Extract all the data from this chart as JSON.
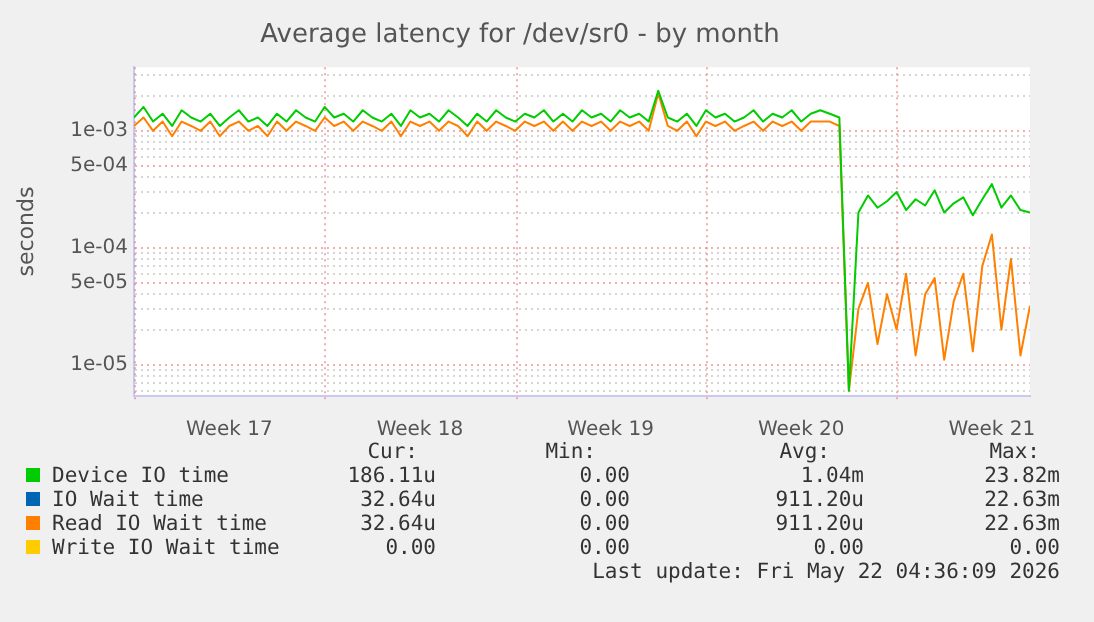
{
  "chart_data": {
    "type": "line",
    "title": "Average latency for /dev/sr0 - by month",
    "ylabel": "seconds",
    "log": "y",
    "grid": true,
    "legend": "bottom",
    "marker": "none",
    "line_style": "solid",
    "categories": [
      null,
      null,
      null,
      null,
      null,
      null,
      null,
      null,
      null,
      null,
      "Week 17",
      null,
      null,
      null,
      null,
      null,
      null,
      null,
      null,
      null,
      null,
      null,
      null,
      null,
      null,
      null,
      null,
      null,
      null,
      null,
      "Week 18",
      null,
      null,
      null,
      null,
      null,
      null,
      null,
      null,
      null,
      null,
      null,
      null,
      null,
      null,
      null,
      null,
      null,
      null,
      null,
      "Week 19",
      null,
      null,
      null,
      null,
      null,
      null,
      null,
      null,
      null,
      null,
      null,
      null,
      null,
      null,
      null,
      null,
      null,
      null,
      null,
      "Week 20",
      null,
      null,
      null,
      null,
      null,
      null,
      null,
      null,
      null,
      null,
      null,
      null,
      null,
      null,
      null,
      null,
      null,
      null,
      null,
      "Week 21",
      null,
      null,
      null,
      null
    ],
    "ylim": [
      5.4e-06,
      0.0035
    ],
    "yticks": [
      {
        "value": 6e-06,
        "label": null
      },
      {
        "value": 7e-06,
        "label": null
      },
      {
        "value": 8e-06,
        "label": null
      },
      {
        "value": 9e-06,
        "label": null
      },
      {
        "value": 1e-05,
        "label": "1e-05"
      },
      {
        "value": 2e-05,
        "label": null
      },
      {
        "value": 3e-05,
        "label": null
      },
      {
        "value": 4e-05,
        "label": null
      },
      {
        "value": 5e-05,
        "label": "5e-05"
      },
      {
        "value": 6e-05,
        "label": null
      },
      {
        "value": 7e-05,
        "label": null
      },
      {
        "value": 8e-05,
        "label": null
      },
      {
        "value": 9e-05,
        "label": null
      },
      {
        "value": 0.0001,
        "label": "1e-04"
      },
      {
        "value": 0.0002,
        "label": null
      },
      {
        "value": 0.0003,
        "label": null
      },
      {
        "value": 0.0004,
        "label": null
      },
      {
        "value": 0.0005,
        "label": "5e-04"
      },
      {
        "value": 0.0006,
        "label": null
      },
      {
        "value": 0.0007,
        "label": null
      },
      {
        "value": 0.0008,
        "label": null
      },
      {
        "value": 0.0009,
        "label": null
      },
      {
        "value": 0.001,
        "label": "1e-03"
      },
      {
        "value": 0.002,
        "label": null
      },
      {
        "value": 0.003,
        "label": null
      }
    ],
    "series": [
      {
        "name": "Device IO time",
        "color": "#00cc00",
        "values": [
          0.0013,
          0.0016,
          0.0012,
          0.0014,
          0.0011,
          0.0015,
          0.0013,
          0.0012,
          0.0014,
          0.0011,
          0.0013,
          0.0015,
          0.0012,
          0.0013,
          0.0011,
          0.0014,
          0.0012,
          0.0015,
          0.0013,
          0.0012,
          0.0016,
          0.0013,
          0.0014,
          0.0012,
          0.0015,
          0.0013,
          0.0012,
          0.0014,
          0.0011,
          0.0015,
          0.0013,
          0.0014,
          0.0012,
          0.0015,
          0.0013,
          0.0011,
          0.0014,
          0.0012,
          0.0015,
          0.0013,
          0.0012,
          0.0014,
          0.0013,
          0.0015,
          0.0012,
          0.0014,
          0.0012,
          0.0015,
          0.0013,
          0.0014,
          0.0012,
          0.0015,
          0.0013,
          0.0014,
          0.0012,
          0.0022,
          0.0013,
          0.0012,
          0.0014,
          0.0011,
          0.0015,
          0.0013,
          0.0014,
          0.0012,
          0.0013,
          0.0015,
          0.0012,
          0.0014,
          0.0013,
          0.0015,
          0.0012,
          0.0014,
          0.0015,
          0.0014,
          0.0013,
          6e-06,
          0.0002,
          0.00028,
          0.00022,
          0.00025,
          0.0003,
          0.00021,
          0.00026,
          0.00023,
          0.00031,
          0.0002,
          0.00024,
          0.00027,
          0.00019,
          0.00026,
          0.00035,
          0.00022,
          0.00028,
          0.00021,
          0.0002
        ]
      },
      {
        "name": "IO Wait time",
        "color": "#0066b3",
        "values": [
          null,
          null,
          null,
          null,
          null,
          null,
          null,
          null,
          null,
          null,
          null,
          null,
          null,
          null,
          null,
          null,
          null,
          null,
          null,
          null,
          null,
          null,
          null,
          null,
          null,
          null,
          null,
          null,
          null,
          null,
          null,
          null,
          null,
          null,
          null,
          null,
          null,
          null,
          null,
          null,
          null,
          null,
          null,
          null,
          null,
          null,
          null,
          null,
          null,
          null,
          null,
          null,
          null,
          null,
          null,
          null,
          null,
          null,
          null,
          null,
          null,
          null,
          null,
          null,
          null,
          null,
          null,
          null,
          null,
          null,
          null,
          null,
          null,
          null,
          null,
          null,
          null,
          null,
          null,
          null,
          null,
          null,
          null,
          null,
          null,
          null,
          null,
          null,
          null,
          null,
          null,
          null,
          null,
          null,
          null
        ]
      },
      {
        "name": "Read IO Wait time",
        "color": "#ff8000",
        "values": [
          0.0011,
          0.0013,
          0.001,
          0.0012,
          0.0009,
          0.0012,
          0.0011,
          0.001,
          0.0012,
          0.0009,
          0.0011,
          0.0012,
          0.001,
          0.0011,
          0.0009,
          0.0012,
          0.001,
          0.0012,
          0.0011,
          0.001,
          0.0013,
          0.0011,
          0.0012,
          0.001,
          0.0012,
          0.0011,
          0.001,
          0.0012,
          0.0009,
          0.0012,
          0.0011,
          0.0012,
          0.001,
          0.0012,
          0.0011,
          0.0009,
          0.0012,
          0.001,
          0.0012,
          0.0011,
          0.001,
          0.0012,
          0.0011,
          0.0012,
          0.001,
          0.0012,
          0.001,
          0.0012,
          0.0011,
          0.0012,
          0.001,
          0.0012,
          0.0011,
          0.0012,
          0.001,
          0.0021,
          0.0011,
          0.001,
          0.0012,
          0.0009,
          0.0012,
          0.0011,
          0.0012,
          0.001,
          0.0011,
          0.0012,
          0.001,
          0.0012,
          0.0011,
          0.0012,
          0.001,
          0.0012,
          0.0012,
          0.0012,
          0.0011,
          6e-06,
          3e-05,
          5e-05,
          1.5e-05,
          4e-05,
          2e-05,
          6e-05,
          1.2e-05,
          4e-05,
          5.5e-05,
          1.1e-05,
          3.5e-05,
          6e-05,
          1.3e-05,
          7e-05,
          0.00013,
          2e-05,
          8e-05,
          1.2e-05,
          3.2e-05
        ]
      },
      {
        "name": "Write IO Wait time",
        "color": "#ffcc00",
        "values": [
          null,
          null,
          null,
          null,
          null,
          null,
          null,
          null,
          null,
          null,
          null,
          null,
          null,
          null,
          null,
          null,
          null,
          null,
          null,
          null,
          null,
          null,
          null,
          null,
          null,
          null,
          null,
          null,
          null,
          null,
          null,
          null,
          null,
          null,
          null,
          null,
          null,
          null,
          null,
          null,
          null,
          null,
          null,
          null,
          null,
          null,
          null,
          null,
          null,
          null,
          null,
          null,
          null,
          null,
          null,
          null,
          null,
          null,
          null,
          null,
          null,
          null,
          null,
          null,
          null,
          null,
          null,
          null,
          null,
          null,
          null,
          null,
          null,
          null,
          null,
          null,
          null,
          null,
          null,
          null,
          null,
          null,
          null,
          null,
          null,
          null,
          null,
          null,
          null,
          null,
          null,
          null,
          null,
          null,
          null
        ]
      }
    ],
    "annotations": [
      "Cur:",
      "Min:",
      "Avg:",
      "Max:",
      "186.11u",
      "0.00",
      "1.04m",
      "23.82m",
      "32.64u",
      "0.00",
      "911.20u",
      "22.63m",
      "32.64u",
      "0.00",
      "911.20u",
      "22.63m",
      "0.00",
      "0.00",
      "0.00",
      "0.00",
      "Last update: Fri May 22 04:36:09 2026"
    ]
  }
}
